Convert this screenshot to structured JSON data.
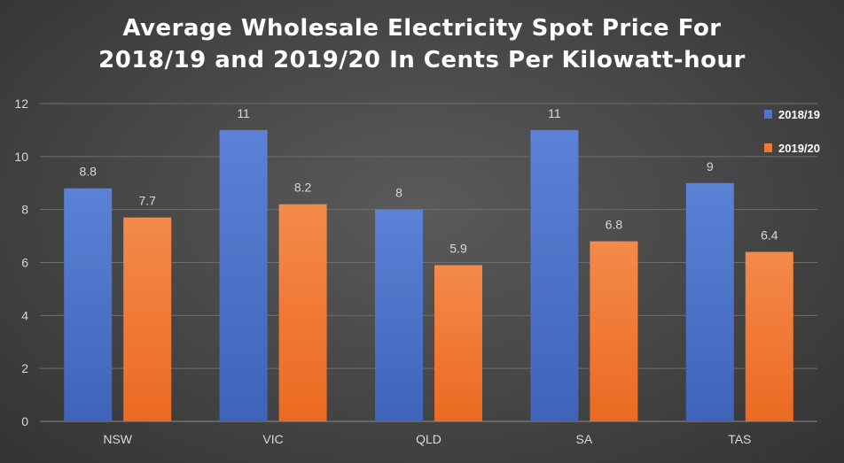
{
  "chart_data": {
    "type": "bar",
    "title_lines": [
      "Average Wholesale Electricity Spot Price For",
      "2018/19 and 2019/20 In Cents Per Kilowatt-hour"
    ],
    "categories": [
      "NSW",
      "VIC",
      "QLD",
      "SA",
      "TAS"
    ],
    "series": [
      {
        "name": "2018/19",
        "values": [
          8.8,
          11,
          8,
          11,
          9
        ],
        "color": "#4f74c9"
      },
      {
        "name": "2019/20",
        "values": [
          7.7,
          8.2,
          5.9,
          6.8,
          6.4
        ],
        "color": "#ef7a35"
      }
    ],
    "ylim": [
      0,
      12
    ],
    "yticks": [
      0,
      2,
      4,
      6,
      8,
      10,
      12
    ],
    "grid": true,
    "legend_position": "top-right"
  }
}
